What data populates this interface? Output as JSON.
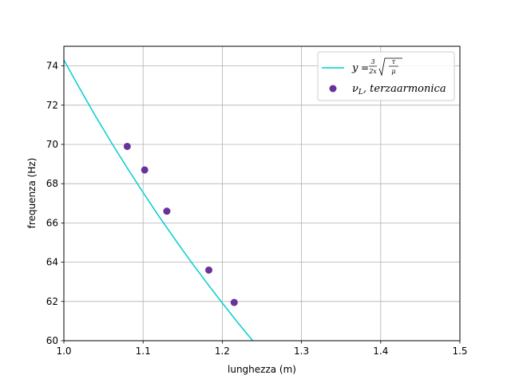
{
  "chart_data": {
    "type": "scatter",
    "title": "",
    "xlabel": "lunghezza (m)",
    "ylabel": "frequenza (Hz)",
    "xlim": [
      1.0,
      1.5
    ],
    "ylim": [
      60,
      75
    ],
    "xticks": [
      "1.0",
      "1.1",
      "1.2",
      "1.3",
      "1.4",
      "1.5"
    ],
    "yticks": [
      "60",
      "62",
      "64",
      "66",
      "68",
      "70",
      "72",
      "74"
    ],
    "grid": true,
    "legend_position": "top-right",
    "series": [
      {
        "kind": "line",
        "color": "#00ced1",
        "legend_label": "y = 3/(2x) √(τ/μ)",
        "x": [
          1.0,
          1.02,
          1.04,
          1.06,
          1.08,
          1.1,
          1.12,
          1.14,
          1.16,
          1.18,
          1.2,
          1.22,
          1.24
        ],
        "y": [
          74.3,
          72.85,
          71.44,
          70.09,
          68.8,
          67.55,
          66.34,
          65.18,
          64.05,
          62.97,
          61.92,
          60.9,
          59.92
        ]
      },
      {
        "kind": "scatter",
        "color": "#663399",
        "legend_label": "ν_L, terzaarmonica",
        "x": [
          1.08,
          1.102,
          1.13,
          1.183,
          1.215
        ],
        "y": [
          69.9,
          68.7,
          66.6,
          63.6,
          61.95
        ]
      }
    ]
  }
}
